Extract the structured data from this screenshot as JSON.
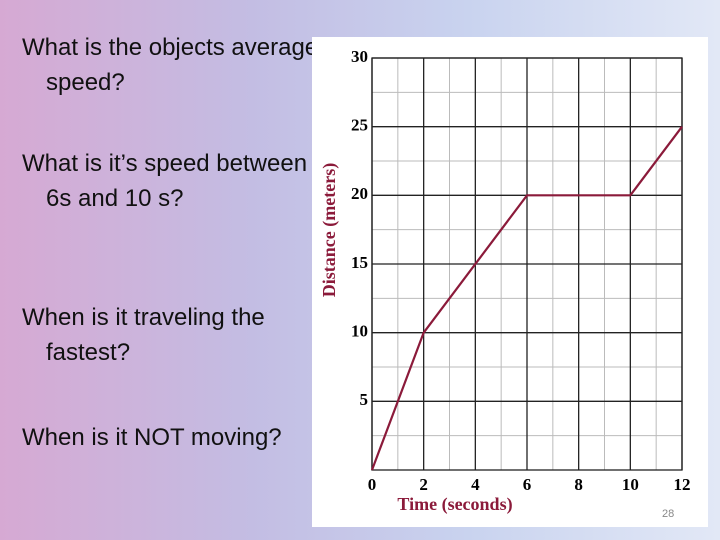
{
  "questions": [
    "What is the objects average speed?",
    "What is it’s speed between 6s and 10 s?",
    "When is it traveling the fastest?",
    "When is it NOT moving?"
  ],
  "slide_number": "28",
  "chart_data": {
    "type": "line",
    "x_label": "Time (seconds)",
    "y_label": "Distance (meters)",
    "x": [
      0,
      2,
      6,
      10,
      12
    ],
    "series": [
      {
        "values": [
          0,
          10,
          20,
          20,
          25
        ],
        "color": "#8b1a3a"
      }
    ],
    "xlim": [
      0,
      12
    ],
    "xticks": [
      0,
      2,
      4,
      6,
      8,
      10,
      12
    ],
    "ylim": [
      0,
      30
    ],
    "yticks": [
      5,
      10,
      15,
      20,
      25,
      30
    ],
    "x_minor_ticks": [
      1,
      3,
      5,
      7,
      9,
      11
    ],
    "y_minor_ticks": [
      2.5,
      7.5,
      12.5,
      17.5,
      22.5,
      27.5
    ],
    "grid": true
  }
}
